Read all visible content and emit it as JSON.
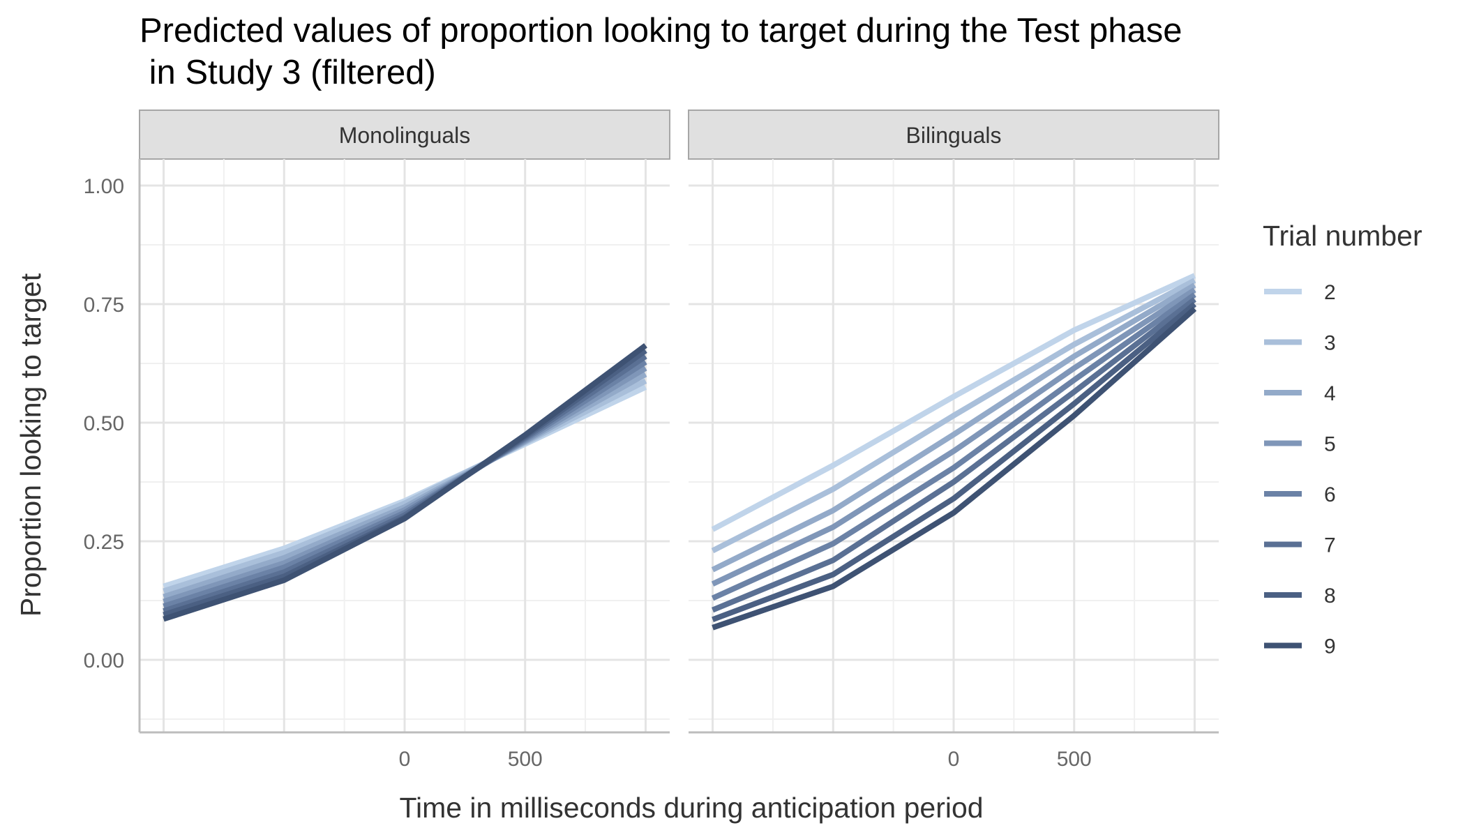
{
  "chart_data": {
    "type": "line",
    "title_line1": "Predicted values of proportion looking to target during the Test phase",
    "title_line2": " in Study 3 (filtered)",
    "xlabel": "Time in milliseconds during anticipation period",
    "ylabel": "Proportion looking to target",
    "x": [
      -1000,
      -500,
      0,
      500,
      1000
    ],
    "xlim": [
      -1100,
      1100
    ],
    "ylim": [
      -0.15,
      1.1
    ],
    "x_ticks": [
      0,
      500
    ],
    "y_ticks": [
      0,
      0.25,
      0.5,
      0.75,
      1.0
    ],
    "y_tick_labels": [
      "0.00",
      "0.25",
      "0.50",
      "0.75",
      "1.00"
    ],
    "grid": true,
    "legend": {
      "title": "Trial number",
      "position": "right",
      "entries": [
        "2",
        "3",
        "4",
        "5",
        "6",
        "7",
        "8",
        "9"
      ]
    },
    "colors": [
      "#c0d4ea",
      "#a9bfda",
      "#93aac9",
      "#7f96b8",
      "#6b82a6",
      "#5a7094",
      "#4b6083",
      "#3e5273"
    ],
    "panels": [
      {
        "name": "Monolinguals",
        "series": [
          {
            "name": "2",
            "values": [
              0.155,
              0.235,
              0.335,
              0.455,
              0.575
            ]
          },
          {
            "name": "3",
            "values": [
              0.145,
              0.226,
              0.33,
              0.458,
              0.588
            ]
          },
          {
            "name": "4",
            "values": [
              0.133,
              0.215,
              0.322,
              0.46,
              0.602
            ]
          },
          {
            "name": "5",
            "values": [
              0.123,
              0.204,
              0.316,
              0.462,
              0.615
            ]
          },
          {
            "name": "6",
            "values": [
              0.113,
              0.195,
              0.31,
              0.465,
              0.628
            ]
          },
          {
            "name": "7",
            "values": [
              0.103,
              0.185,
              0.305,
              0.468,
              0.64
            ]
          },
          {
            "name": "8",
            "values": [
              0.095,
              0.176,
              0.3,
              0.471,
              0.652
            ]
          },
          {
            "name": "9",
            "values": [
              0.086,
              0.168,
              0.298,
              0.474,
              0.663
            ]
          }
        ]
      },
      {
        "name": "Bilinguals",
        "series": [
          {
            "name": "2",
            "values": [
              0.275,
              0.41,
              0.555,
              0.695,
              0.81
            ]
          },
          {
            "name": "3",
            "values": [
              0.23,
              0.36,
              0.515,
              0.665,
              0.8
            ]
          },
          {
            "name": "4",
            "values": [
              0.19,
              0.315,
              0.475,
              0.64,
              0.79
            ]
          },
          {
            "name": "5",
            "values": [
              0.16,
              0.28,
              0.44,
              0.615,
              0.78
            ]
          },
          {
            "name": "6",
            "values": [
              0.13,
              0.245,
              0.405,
              0.59,
              0.77
            ]
          },
          {
            "name": "7",
            "values": [
              0.105,
              0.21,
              0.375,
              0.565,
              0.76
            ]
          },
          {
            "name": "8",
            "values": [
              0.085,
              0.18,
              0.34,
              0.54,
              0.75
            ]
          },
          {
            "name": "9",
            "values": [
              0.068,
              0.155,
              0.31,
              0.515,
              0.74
            ]
          }
        ]
      }
    ]
  }
}
